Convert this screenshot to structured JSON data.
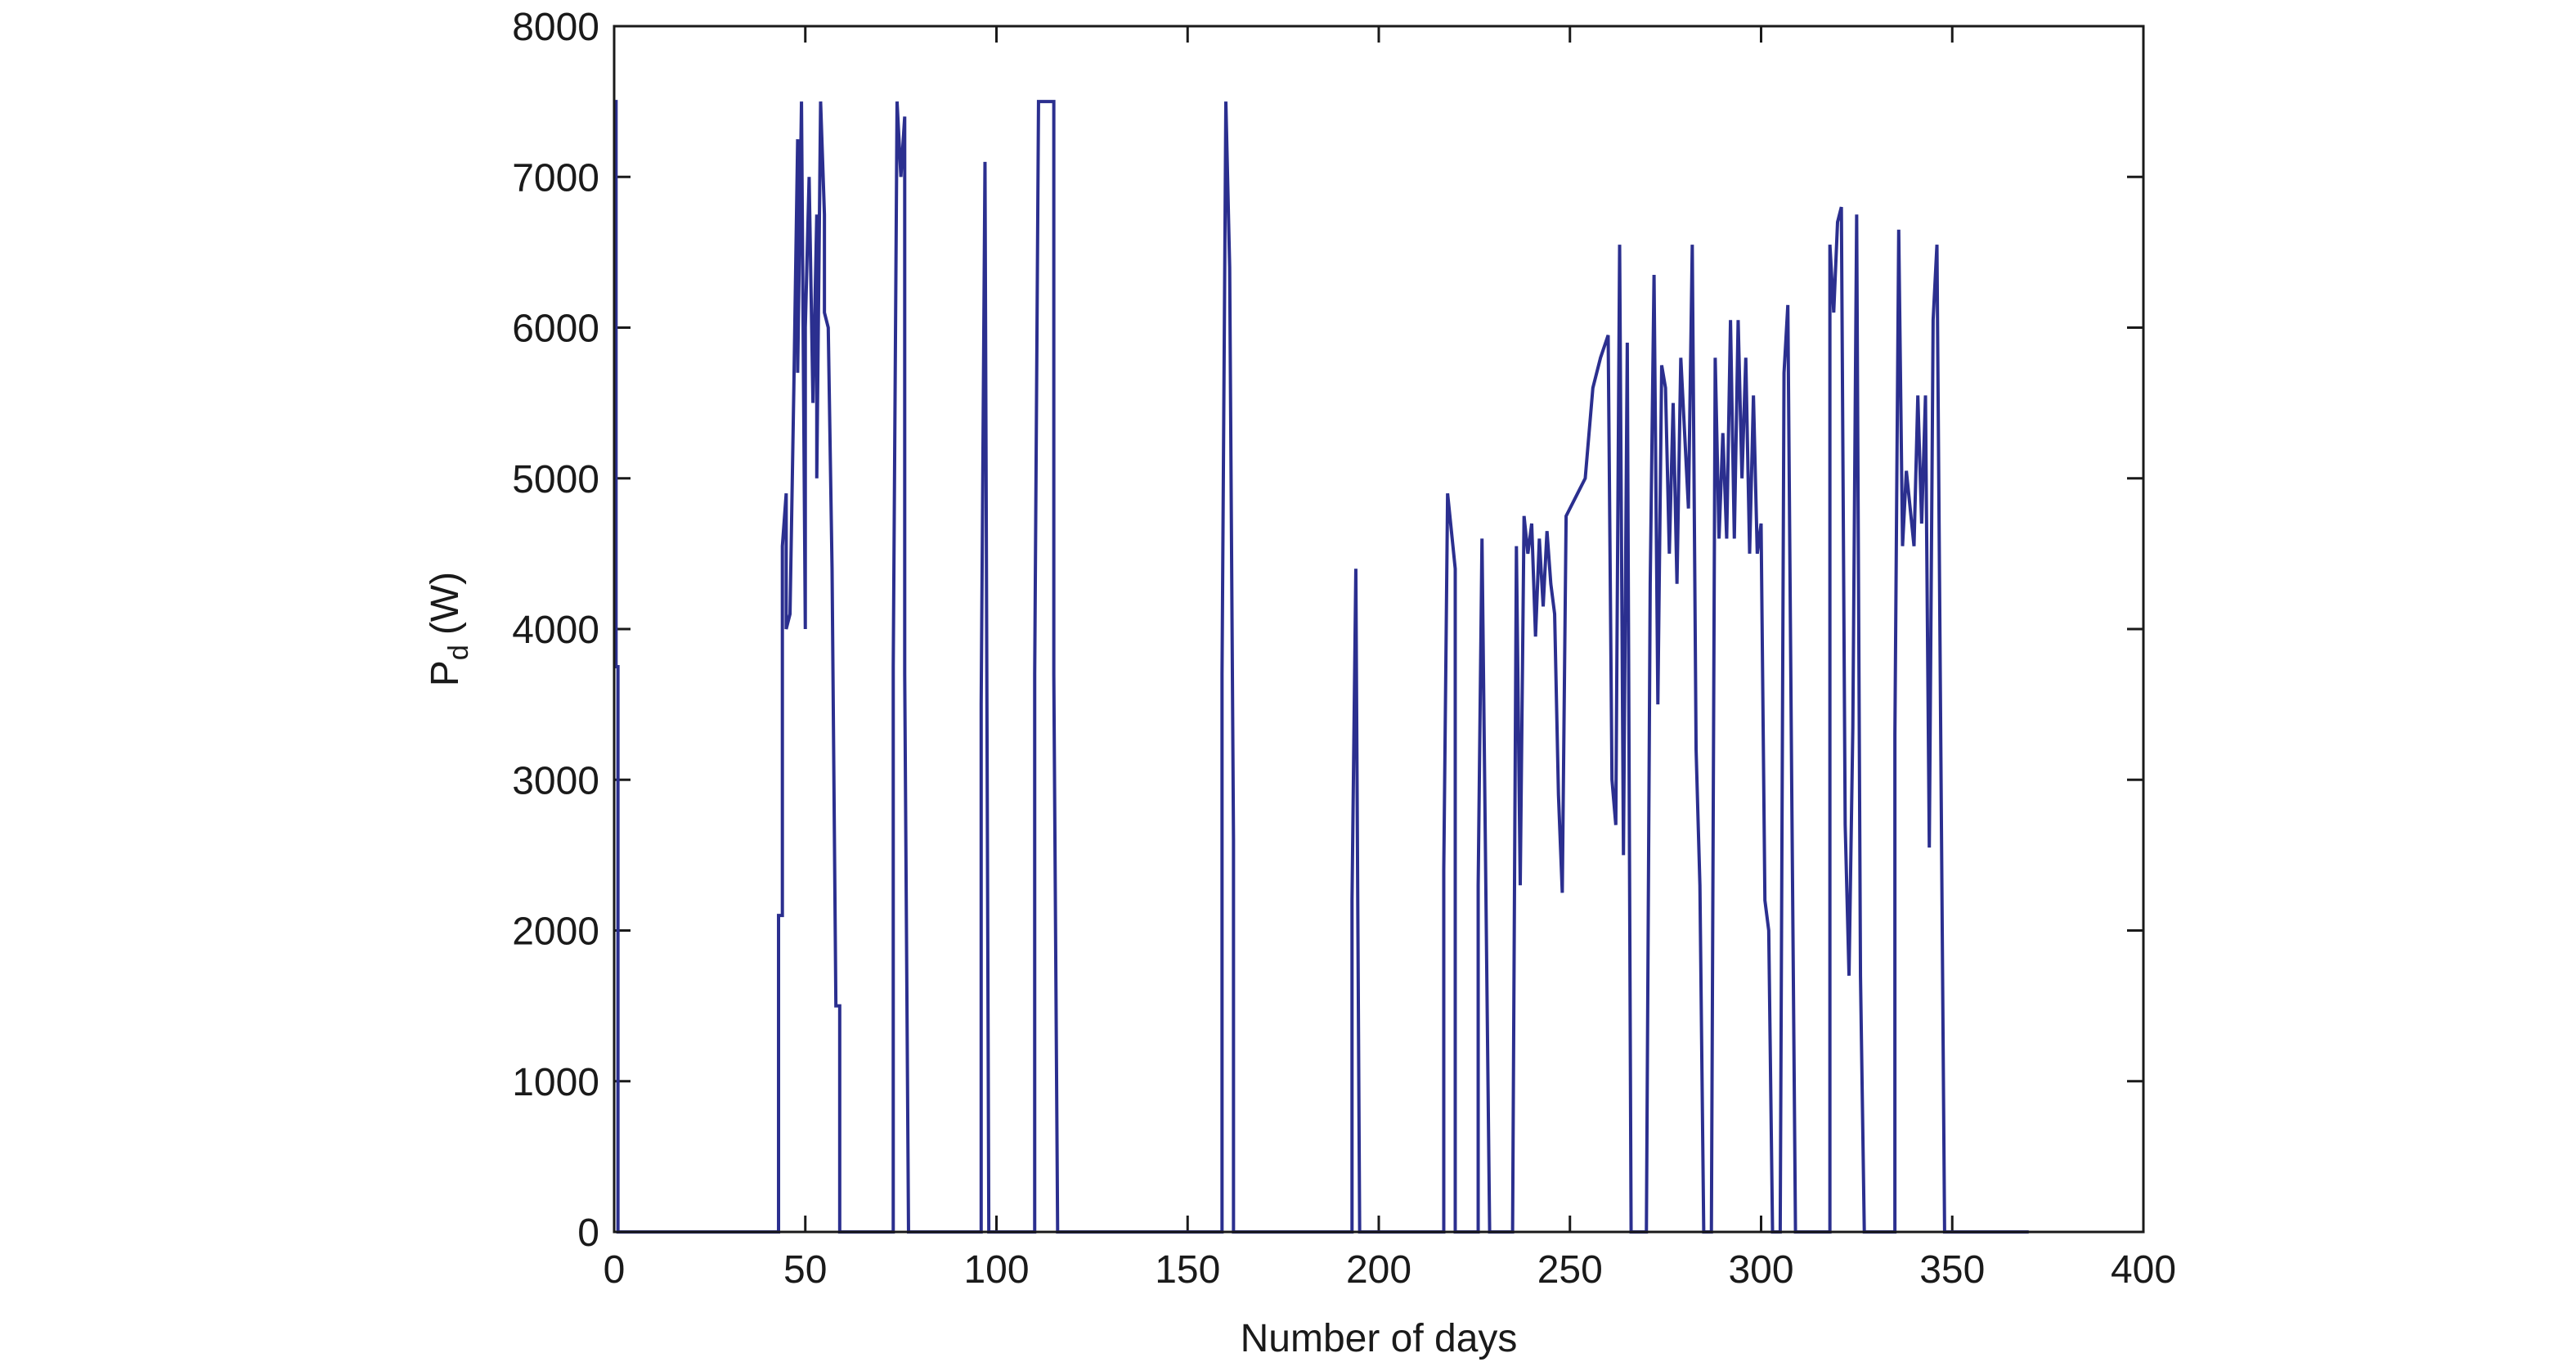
{
  "chart_data": {
    "type": "line",
    "x_label": "Number of days",
    "y_label": {
      "main": "P",
      "sub": "d",
      "rest": "(W)"
    },
    "xlim": [
      0,
      400
    ],
    "xticks": [
      0,
      50,
      100,
      150,
      200,
      250,
      300,
      350,
      400
    ],
    "ylim": [
      0,
      8000
    ],
    "yticks": [
      0,
      1000,
      2000,
      3000,
      4000,
      5000,
      6000,
      7000,
      8000
    ],
    "grid": false,
    "x": [
      0,
      0.5,
      0.5,
      1,
      1,
      43,
      43,
      44,
      44,
      45,
      45,
      46,
      47,
      48,
      48,
      49,
      50,
      50,
      51,
      52,
      53,
      53,
      54,
      55,
      55,
      56,
      57,
      58,
      59,
      59,
      73,
      73,
      74,
      75,
      76,
      76,
      77,
      96,
      96,
      97,
      98,
      110,
      110,
      111,
      115,
      115,
      116,
      159,
      159,
      160,
      161,
      162,
      162,
      193,
      193,
      194,
      195,
      217,
      217,
      218,
      219,
      220,
      220,
      226,
      226,
      227,
      228,
      229,
      235,
      236,
      237,
      238,
      239,
      240,
      241,
      242,
      243,
      244,
      245,
      246,
      247,
      248,
      249,
      250,
      252,
      254,
      256,
      258,
      260,
      261,
      262,
      263,
      264,
      265,
      266,
      270,
      271,
      272,
      273,
      274,
      275,
      276,
      277,
      278,
      279,
      281,
      282,
      283,
      284,
      285,
      287,
      288,
      289,
      290,
      291,
      292,
      293,
      294,
      295,
      296,
      297,
      298,
      299,
      300,
      301,
      302,
      303,
      305,
      306,
      307,
      308,
      309,
      318,
      318,
      319,
      320,
      321,
      322,
      323,
      324,
      325,
      326,
      327,
      335,
      335,
      336,
      337,
      338,
      340,
      341,
      342,
      343,
      344,
      345,
      346,
      347,
      348,
      370
    ],
    "series": [
      {
        "name": "Pd",
        "color": "#2b2f8f",
        "values": [
          7500,
          7500,
          3750,
          3750,
          0,
          0,
          2100,
          2100,
          4550,
          4900,
          4000,
          4100,
          5600,
          7250,
          5700,
          7500,
          4000,
          6000,
          7000,
          5500,
          6750,
          5000,
          7500,
          6750,
          6100,
          6000,
          4400,
          1500,
          1500,
          0,
          0,
          3750,
          7500,
          7000,
          7400,
          3700,
          0,
          0,
          3500,
          7100,
          0,
          0,
          3700,
          7500,
          7500,
          3700,
          0,
          0,
          3700,
          7500,
          6400,
          2600,
          0,
          0,
          2200,
          4400,
          0,
          0,
          2400,
          4900,
          4650,
          4400,
          0,
          0,
          2300,
          4600,
          2300,
          0,
          0,
          4550,
          2300,
          4750,
          4500,
          4700,
          3950,
          4600,
          4150,
          4650,
          4300,
          4100,
          2900,
          2250,
          4750,
          4800,
          4900,
          5000,
          5600,
          5800,
          5950,
          3000,
          2700,
          6550,
          2500,
          5900,
          0,
          0,
          4300,
          6350,
          3500,
          5750,
          5600,
          4500,
          5500,
          4300,
          5800,
          4800,
          6550,
          3200,
          2300,
          0,
          0,
          5800,
          4600,
          5300,
          4600,
          6050,
          4600,
          6050,
          5000,
          5800,
          4500,
          5550,
          4500,
          4700,
          2200,
          2000,
          0,
          0,
          5700,
          6150,
          3000,
          0,
          0,
          6550,
          6100,
          6700,
          6800,
          2700,
          1700,
          3350,
          6750,
          1700,
          0,
          0,
          3300,
          6650,
          4550,
          5050,
          4550,
          5550,
          4700,
          5550,
          2550,
          6050,
          6550,
          3250,
          0,
          0
        ]
      }
    ]
  }
}
